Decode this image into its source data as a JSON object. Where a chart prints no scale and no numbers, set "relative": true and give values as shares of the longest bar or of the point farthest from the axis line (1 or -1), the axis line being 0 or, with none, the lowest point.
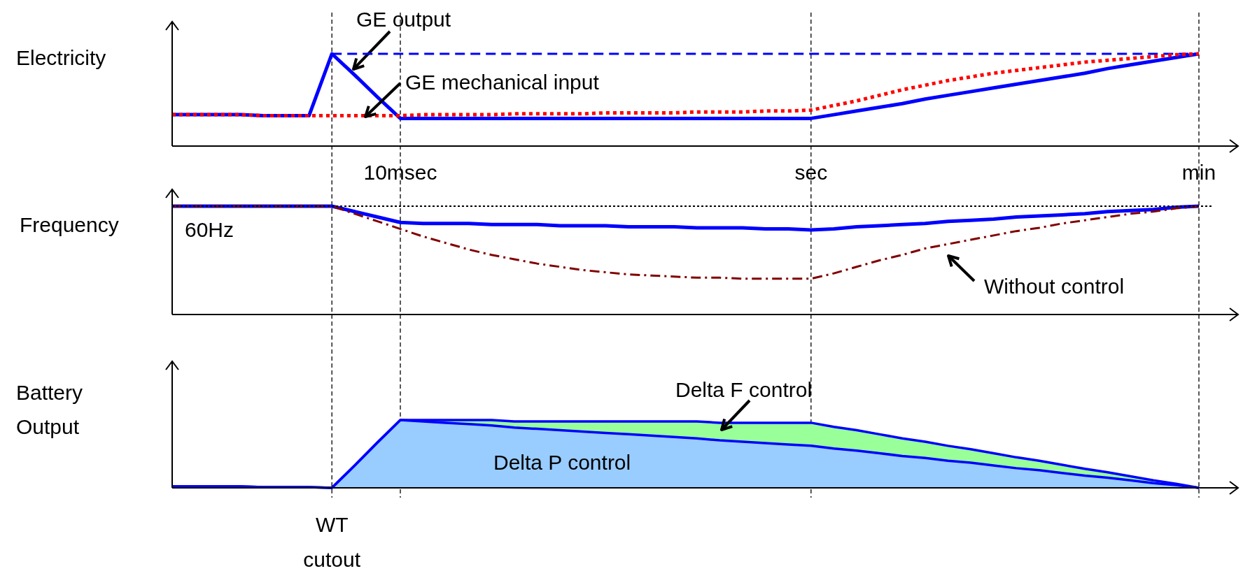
{
  "chart_data": [
    {
      "type": "line",
      "relative": true,
      "ylabel": "Electricity",
      "categories": [
        null,
        null,
        null,
        null,
        null,
        null,
        null,
        null,
        null,
        null,
        "10msec",
        null,
        null,
        null,
        null,
        null,
        null,
        null,
        null,
        null,
        null,
        null,
        null,
        null,
        null,
        null,
        null,
        null,
        "sec",
        null,
        null,
        null,
        null,
        null,
        null,
        null,
        null,
        null,
        null,
        null,
        null,
        null,
        null,
        null,
        null,
        "min"
      ],
      "grid": "x",
      "series": [
        {
          "name": "GE output",
          "color": "#0000ff",
          "line_style": "solid",
          "values": [
            0.34,
            0.34,
            0.34,
            0.34,
            0.33,
            0.33,
            0.33,
            1,
            0.77,
            0.53,
            0.3,
            0.3,
            0.3,
            0.3,
            0.3,
            0.3,
            0.3,
            0.3,
            0.3,
            0.3,
            0.3,
            0.3,
            0.3,
            0.3,
            0.3,
            0.3,
            0.3,
            0.3,
            0.3,
            0.34,
            0.38,
            0.42,
            0.46,
            0.51,
            0.55,
            0.59,
            0.63,
            0.67,
            0.71,
            0.75,
            0.79,
            0.84,
            0.88,
            0.92,
            0.96,
            1
          ]
        },
        {
          "color": "#0000ff",
          "line_style": "dashed",
          "values": [
            null,
            null,
            null,
            null,
            null,
            null,
            null,
            1,
            1,
            1,
            1,
            1,
            1,
            1,
            1,
            1,
            1,
            1,
            1,
            1,
            1,
            1,
            1,
            1,
            1,
            1,
            1,
            1,
            1,
            1,
            1,
            1,
            1,
            1,
            1,
            1,
            1,
            1,
            1,
            1,
            1,
            1,
            1,
            1,
            1,
            1
          ]
        },
        {
          "name": "GE mechanical input",
          "color": "#ff0000",
          "line_style": "dotted",
          "values": [
            0.34,
            0.34,
            0.34,
            0.34,
            0.33,
            0.33,
            0.33,
            0.33,
            0.33,
            0.33,
            0.33,
            0.34,
            0.34,
            0.34,
            0.34,
            0.35,
            0.35,
            0.35,
            0.35,
            0.36,
            0.36,
            0.36,
            0.36,
            0.37,
            0.37,
            0.37,
            0.38,
            0.38,
            0.39,
            0.44,
            0.49,
            0.55,
            0.61,
            0.66,
            0.71,
            0.75,
            0.79,
            0.82,
            0.85,
            0.88,
            0.91,
            0.93,
            0.95,
            0.97,
            0.99,
            1
          ]
        }
      ]
    },
    {
      "type": "line",
      "relative": true,
      "ylabel": "Frequency",
      "categories": [
        null,
        null,
        null,
        null,
        null,
        null,
        null,
        null,
        null,
        null,
        null,
        null,
        null,
        null,
        null,
        null,
        null,
        null,
        null,
        null,
        null,
        null,
        null,
        null,
        null,
        null,
        null,
        null,
        null,
        null,
        null,
        null,
        null,
        null,
        null,
        null,
        null,
        null,
        null,
        null,
        null,
        null,
        null,
        null,
        null,
        null
      ],
      "ref_lines": [
        {
          "axis": "y",
          "value": 1,
          "label": "60Hz",
          "color": "#000000",
          "line_style": "dotted"
        }
      ],
      "grid": "x",
      "series": [
        {
          "color": "#0000ff",
          "line_style": "solid",
          "values": [
            1,
            1,
            1,
            1,
            1,
            1,
            1,
            1,
            0.95,
            0.9,
            0.85,
            0.84,
            0.84,
            0.84,
            0.83,
            0.83,
            0.83,
            0.82,
            0.82,
            0.82,
            0.81,
            0.81,
            0.81,
            0.8,
            0.8,
            0.8,
            0.79,
            0.79,
            0.78,
            0.79,
            0.81,
            0.82,
            0.83,
            0.84,
            0.86,
            0.87,
            0.88,
            0.9,
            0.91,
            0.92,
            0.93,
            0.95,
            0.96,
            0.97,
            0.99,
            1
          ]
        },
        {
          "name": "Without control",
          "color": "#800000",
          "line_style": "dashdot",
          "values": [
            1,
            1,
            1,
            1,
            1,
            1,
            1,
            1,
            0.93,
            0.86,
            0.79,
            0.72,
            0.66,
            0.6,
            0.55,
            0.51,
            0.47,
            0.44,
            0.41,
            0.39,
            0.37,
            0.36,
            0.35,
            0.34,
            0.34,
            0.33,
            0.33,
            0.33,
            0.33,
            0.38,
            0.44,
            0.5,
            0.55,
            0.61,
            0.65,
            0.69,
            0.73,
            0.77,
            0.8,
            0.84,
            0.87,
            0.9,
            0.93,
            0.95,
            0.98,
            1
          ]
        }
      ]
    },
    {
      "type": "area",
      "relative": true,
      "stacked": true,
      "ylabel": "Battery Output",
      "categories": [
        null,
        null,
        null,
        null,
        null,
        null,
        null,
        null,
        null,
        null,
        null,
        null,
        null,
        null,
        null,
        null,
        null,
        null,
        null,
        null,
        null,
        null,
        null,
        null,
        null,
        null,
        null,
        null,
        null,
        null,
        null,
        null,
        null,
        null,
        null,
        null,
        null,
        null,
        null,
        null,
        null,
        null,
        null,
        null,
        null,
        null
      ],
      "annotations": [
        "WT cutout"
      ],
      "grid": "x",
      "series": [
        {
          "name": "Delta P control",
          "color": "#99ccff",
          "values": [
            0.02,
            0.02,
            0.02,
            0.02,
            0.01,
            0.01,
            0.01,
            0,
            0.33,
            0.67,
            1,
            0.98,
            0.96,
            0.94,
            0.92,
            0.89,
            0.87,
            0.85,
            0.83,
            0.81,
            0.79,
            0.77,
            0.75,
            0.73,
            0.7,
            0.68,
            0.66,
            0.64,
            0.62,
            0.58,
            0.55,
            0.51,
            0.47,
            0.44,
            0.4,
            0.37,
            0.33,
            0.29,
            0.26,
            0.22,
            0.18,
            0.15,
            0.11,
            0.07,
            0.04,
            0
          ]
        },
        {
          "name": "Delta F control",
          "color": "#99ff99",
          "values": [
            null,
            null,
            null,
            null,
            null,
            null,
            null,
            null,
            null,
            null,
            0,
            0.02,
            0.04,
            0.06,
            0.08,
            0.09,
            0.11,
            0.13,
            0.15,
            0.17,
            0.19,
            0.21,
            0.23,
            0.25,
            0.26,
            0.28,
            0.3,
            0.32,
            0.34,
            0.32,
            0.3,
            0.28,
            0.26,
            0.24,
            0.22,
            0.2,
            0.18,
            0.16,
            0.14,
            0.12,
            0.1,
            0.08,
            0.06,
            0.04,
            0.02,
            0
          ]
        }
      ]
    }
  ]
}
